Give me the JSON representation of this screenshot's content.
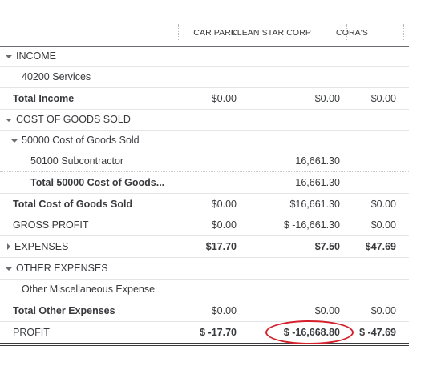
{
  "columns": [
    "CAR PARK",
    "CLEAN STAR CORP",
    "CORA'S"
  ],
  "rows": [
    {
      "label": "INCOME",
      "values": [
        "",
        "",
        ""
      ]
    },
    {
      "label": "40200 Services",
      "values": [
        "",
        "",
        ""
      ]
    },
    {
      "label": "Total Income",
      "values": [
        "$0.00",
        "$0.00",
        "$0.00"
      ]
    },
    {
      "label": "COST OF GOODS SOLD",
      "values": [
        "",
        "",
        ""
      ]
    },
    {
      "label": "50000 Cost of Goods Sold",
      "values": [
        "",
        "",
        ""
      ]
    },
    {
      "label": "50100 Subcontractor",
      "values": [
        "",
        "16,661.30",
        ""
      ]
    },
    {
      "label": "Total 50000 Cost of Goods...",
      "values": [
        "",
        "16,661.30",
        ""
      ]
    },
    {
      "label": "Total Cost of Goods Sold",
      "values": [
        "$0.00",
        "$16,661.30",
        "$0.00"
      ]
    },
    {
      "label": "GROSS PROFIT",
      "values": [
        "$0.00",
        "$ -16,661.30",
        "$0.00"
      ]
    },
    {
      "label": "EXPENSES",
      "values": [
        "$17.70",
        "$7.50",
        "$47.69"
      ]
    },
    {
      "label": "OTHER EXPENSES",
      "values": [
        "",
        "",
        ""
      ]
    },
    {
      "label": "Other Miscellaneous Expense",
      "values": [
        "",
        "",
        ""
      ]
    },
    {
      "label": "Total Other Expenses",
      "values": [
        "$0.00",
        "$0.00",
        "$0.00"
      ]
    },
    {
      "label": "PROFIT",
      "values": [
        "$ -17.70",
        "$ -16,668.80",
        "$ -47.69"
      ]
    }
  ],
  "highlight_color": "#d4202a"
}
